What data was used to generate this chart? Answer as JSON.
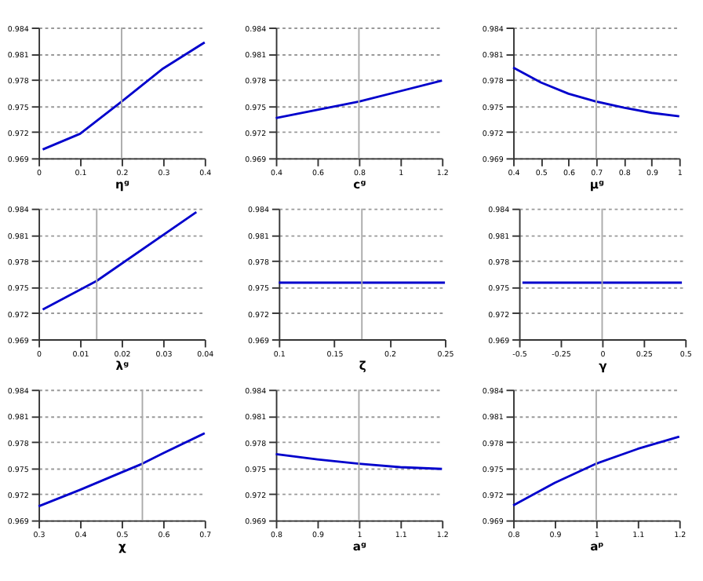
{
  "chart_data": [
    {
      "type": "line",
      "xlabel": "ηᵍ",
      "x": [
        0.01,
        0.1,
        0.2,
        0.3,
        0.4
      ],
      "series": [
        {
          "color": "#0000cc",
          "values": [
            0.97,
            0.9718,
            0.9755,
            0.9793,
            0.9823
          ]
        }
      ],
      "xlim": [
        0,
        0.4
      ],
      "xticks": [
        0,
        0.1,
        0.2,
        0.3,
        0.4
      ],
      "ylim": [
        0.969,
        0.984
      ],
      "yticks": [
        0.969,
        0.972,
        0.975,
        0.978,
        0.981,
        0.984
      ],
      "grid": "y",
      "ref_lines": [
        {
          "axis": "x",
          "value": 0.2,
          "color": "#aaaaaa"
        }
      ]
    },
    {
      "type": "line",
      "xlabel": "cᵍ",
      "x": [
        0.4,
        0.8,
        1.2
      ],
      "series": [
        {
          "color": "#0000cc",
          "values": [
            0.9736,
            0.9755,
            0.9779
          ]
        }
      ],
      "xlim": [
        0.4,
        1.2
      ],
      "xticks": [
        0.4,
        0.6,
        0.8,
        1,
        1.2
      ],
      "ylim": [
        0.969,
        0.984
      ],
      "yticks": [
        0.969,
        0.972,
        0.975,
        0.978,
        0.981,
        0.984
      ],
      "grid": "y",
      "ref_lines": [
        {
          "axis": "x",
          "value": 0.8,
          "color": "#aaaaaa"
        }
      ]
    },
    {
      "type": "line",
      "xlabel": "μᵍ",
      "x": [
        0.4,
        0.5,
        0.6,
        0.7,
        0.8,
        0.9,
        1
      ],
      "series": [
        {
          "color": "#0000cc",
          "values": [
            0.9794,
            0.9777,
            0.9764,
            0.9755,
            0.9748,
            0.9742,
            0.9738
          ]
        }
      ],
      "xlim": [
        0.4,
        1
      ],
      "xticks": [
        0.4,
        0.5,
        0.6,
        0.7,
        0.8,
        0.9,
        1
      ],
      "ylim": [
        0.969,
        0.984
      ],
      "yticks": [
        0.969,
        0.972,
        0.975,
        0.978,
        0.981,
        0.984
      ],
      "grid": "y",
      "ref_lines": [
        {
          "axis": "x",
          "value": 0.7,
          "color": "#aaaaaa"
        }
      ]
    },
    {
      "type": "line",
      "xlabel": "λᵍ",
      "x": [
        0.001,
        0.014,
        0.038
      ],
      "series": [
        {
          "color": "#0000cc",
          "values": [
            0.9724,
            0.9757,
            0.9836
          ]
        }
      ],
      "xlim": [
        0,
        0.04
      ],
      "xticks": [
        0,
        0.01,
        0.02,
        0.03,
        0.04
      ],
      "ylim": [
        0.969,
        0.984
      ],
      "yticks": [
        0.969,
        0.972,
        0.975,
        0.978,
        0.981,
        0.984
      ],
      "grid": "y",
      "ref_lines": [
        {
          "axis": "x",
          "value": 0.014,
          "color": "#aaaaaa"
        }
      ]
    },
    {
      "type": "line",
      "xlabel": "ζ",
      "x": [
        0.1,
        0.25
      ],
      "series": [
        {
          "color": "#0000cc",
          "values": [
            0.9755,
            0.9755
          ]
        }
      ],
      "xlim": [
        0.1,
        0.25
      ],
      "xticks": [
        0.1,
        0.15,
        0.2,
        0.25
      ],
      "ylim": [
        0.969,
        0.984
      ],
      "yticks": [
        0.969,
        0.972,
        0.975,
        0.978,
        0.981,
        0.984
      ],
      "grid": "y",
      "ref_lines": [
        {
          "axis": "x",
          "value": 0.175,
          "color": "#aaaaaa"
        }
      ]
    },
    {
      "type": "line",
      "xlabel": "γ",
      "x": [
        -0.48,
        0.48
      ],
      "series": [
        {
          "color": "#0000cc",
          "values": [
            0.9755,
            0.9755
          ]
        }
      ],
      "xlim": [
        -0.5,
        0.5
      ],
      "xticks": [
        -0.5,
        -0.25,
        0,
        0.25,
        0.5
      ],
      "ylim": [
        0.969,
        0.984
      ],
      "yticks": [
        0.969,
        0.972,
        0.975,
        0.978,
        0.981,
        0.984
      ],
      "grid": "y",
      "ref_lines": [
        {
          "axis": "x",
          "value": 0,
          "color": "#aaaaaa"
        }
      ]
    },
    {
      "type": "line",
      "xlabel": "χ",
      "x": [
        0.3,
        0.4,
        0.5,
        0.55,
        0.6,
        0.7
      ],
      "series": [
        {
          "color": "#0000cc",
          "values": [
            0.9706,
            0.9725,
            0.9745,
            0.9755,
            0.9767,
            0.979
          ]
        }
      ],
      "xlim": [
        0.3,
        0.7
      ],
      "xticks": [
        0.3,
        0.4,
        0.5,
        0.6,
        0.7
      ],
      "ylim": [
        0.969,
        0.984
      ],
      "yticks": [
        0.969,
        0.972,
        0.975,
        0.978,
        0.981,
        0.984
      ],
      "grid": "y",
      "ref_lines": [
        {
          "axis": "x",
          "value": 0.55,
          "color": "#aaaaaa"
        }
      ]
    },
    {
      "type": "line",
      "xlabel": "aᵍ",
      "x": [
        0.8,
        0.9,
        1,
        1.1,
        1.2
      ],
      "series": [
        {
          "color": "#0000cc",
          "values": [
            0.9766,
            0.976,
            0.9755,
            0.9751,
            0.9749
          ]
        }
      ],
      "xlim": [
        0.8,
        1.2
      ],
      "xticks": [
        0.8,
        0.9,
        1,
        1.1,
        1.2
      ],
      "ylim": [
        0.969,
        0.984
      ],
      "yticks": [
        0.969,
        0.972,
        0.975,
        0.978,
        0.981,
        0.984
      ],
      "grid": "y",
      "ref_lines": [
        {
          "axis": "x",
          "value": 1,
          "color": "#aaaaaa"
        }
      ]
    },
    {
      "type": "line",
      "xlabel": "aᵖ",
      "x": [
        0.8,
        0.9,
        1,
        1.1,
        1.2
      ],
      "series": [
        {
          "color": "#0000cc",
          "values": [
            0.9707,
            0.9733,
            0.9755,
            0.9772,
            0.9786
          ]
        }
      ],
      "xlim": [
        0.8,
        1.2
      ],
      "xticks": [
        0.8,
        0.9,
        1,
        1.1,
        1.2
      ],
      "ylim": [
        0.969,
        0.984
      ],
      "yticks": [
        0.969,
        0.972,
        0.975,
        0.978,
        0.981,
        0.984
      ],
      "grid": "y",
      "ref_lines": [
        {
          "axis": "x",
          "value": 1,
          "color": "#aaaaaa"
        }
      ]
    }
  ]
}
